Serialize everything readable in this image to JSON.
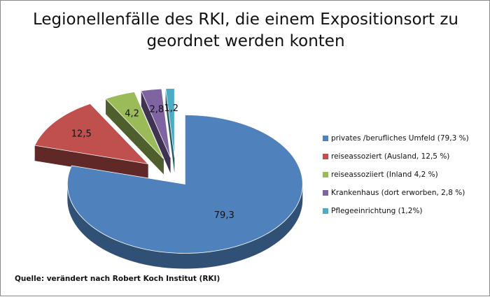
{
  "chart_data": {
    "type": "pie",
    "title": "Legionellenfälle des RKI, die einem Expositionsort zu geordnet werden konten",
    "categories": [
      "privates /berufliches Umfeld (79,3 %)",
      "reiseassoziert (Ausland, 12,5 %)",
      "reiseassoziiert (Inland 4,2 %)",
      "Krankenhaus (dort erworben, 2,8 %)",
      "Pflegeeinrichtung (1,2%)"
    ],
    "values": [
      79.3,
      12.5,
      4.2,
      2.8,
      1.2
    ],
    "value_labels": [
      "79,3",
      "12,5",
      "4,2",
      "2,8",
      "1,2"
    ],
    "colors": [
      "#4f81bd",
      "#c0504d",
      "#9bbb59",
      "#8064a2",
      "#4bacc6"
    ],
    "legend_position": "right",
    "style": "exploded-3d"
  },
  "source": "Quelle: verändert nach Robert Koch Institut (RKI)"
}
